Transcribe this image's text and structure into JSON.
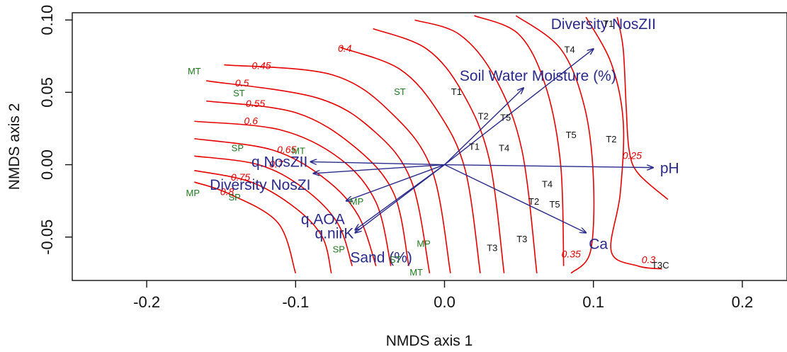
{
  "chart_data": {
    "type": "scatter",
    "xlabel": "NMDS axis 1",
    "ylabel": "NMDS axis 2",
    "xlim": [
      -0.25,
      0.23
    ],
    "ylim": [
      -0.08,
      0.105
    ],
    "x_ticks": [
      "-0.2",
      "-0.1",
      "0.0",
      "0.1",
      "0.2"
    ],
    "y_ticks": [
      "-0.05",
      "0.00",
      "0.05",
      "0.10"
    ],
    "colors": {
      "sites_green": "#1f7a1f",
      "sites_black": "#111111",
      "vectors": "#2a2a8c",
      "contours": "#e60000"
    },
    "sites": [
      {
        "label": "MT",
        "x": -0.168,
        "y": 0.064,
        "group": "green"
      },
      {
        "label": "ST",
        "x": -0.138,
        "y": 0.049,
        "group": "green"
      },
      {
        "label": "SP",
        "x": -0.139,
        "y": 0.011,
        "group": "green"
      },
      {
        "label": "MT",
        "x": -0.098,
        "y": 0.009,
        "group": "green"
      },
      {
        "label": "MP",
        "x": -0.169,
        "y": -0.02,
        "group": "green"
      },
      {
        "label": "SP",
        "x": -0.141,
        "y": -0.023,
        "group": "green"
      },
      {
        "label": "ST",
        "x": -0.03,
        "y": 0.05,
        "group": "green"
      },
      {
        "label": "MP",
        "x": -0.059,
        "y": -0.026,
        "group": "green"
      },
      {
        "label": "SP",
        "x": -0.071,
        "y": -0.059,
        "group": "green"
      },
      {
        "label": "MP",
        "x": -0.014,
        "y": -0.055,
        "group": "green"
      },
      {
        "label": "ST",
        "x": -0.033,
        "y": -0.066,
        "group": "green"
      },
      {
        "label": "MT",
        "x": -0.019,
        "y": -0.075,
        "group": "green"
      },
      {
        "label": "T1",
        "x": 0.11,
        "y": 0.097,
        "group": "black"
      },
      {
        "label": "T4",
        "x": 0.084,
        "y": 0.079,
        "group": "black"
      },
      {
        "label": "T1",
        "x": 0.008,
        "y": 0.05,
        "group": "black"
      },
      {
        "label": "T2",
        "x": 0.026,
        "y": 0.033,
        "group": "black"
      },
      {
        "label": "T5",
        "x": 0.041,
        "y": 0.032,
        "group": "black"
      },
      {
        "label": "T5",
        "x": 0.085,
        "y": 0.02,
        "group": "black"
      },
      {
        "label": "T2",
        "x": 0.112,
        "y": 0.017,
        "group": "black"
      },
      {
        "label": "T1",
        "x": 0.02,
        "y": 0.012,
        "group": "black"
      },
      {
        "label": "T4",
        "x": 0.04,
        "y": 0.011,
        "group": "black"
      },
      {
        "label": "T4",
        "x": 0.069,
        "y": -0.014,
        "group": "black"
      },
      {
        "label": "T2",
        "x": 0.06,
        "y": -0.026,
        "group": "black"
      },
      {
        "label": "T5",
        "x": 0.074,
        "y": -0.028,
        "group": "black"
      },
      {
        "label": "T3",
        "x": 0.052,
        "y": -0.052,
        "group": "black"
      },
      {
        "label": "T3",
        "x": 0.032,
        "y": -0.058,
        "group": "black"
      },
      {
        "label": "T3C",
        "x": 0.145,
        "y": -0.07,
        "group": "black"
      }
    ],
    "vectors": [
      {
        "label": "Diversity NosZII",
        "x": 0.1,
        "y": 0.08
      },
      {
        "label": "Soil Water Moisture (%)",
        "x": 0.053,
        "y": 0.053
      },
      {
        "label": "pH",
        "x": 0.14,
        "y": -0.002
      },
      {
        "label": "Ca",
        "x": 0.095,
        "y": -0.047
      },
      {
        "label": "q.NosZII",
        "x": -0.09,
        "y": 0.002
      },
      {
        "label": "Diversity NosZI",
        "x": -0.088,
        "y": -0.006
      },
      {
        "label": "q.AOA",
        "x": -0.066,
        "y": -0.025
      },
      {
        "label": "q.nirK",
        "x": -0.06,
        "y": -0.045
      },
      {
        "label": "Sand (%)",
        "x": -0.06,
        "y": -0.047
      }
    ],
    "contours": [
      {
        "label": "0.8",
        "points": [
          [
            -0.168,
            -0.012
          ],
          [
            -0.145,
            -0.02
          ],
          [
            -0.112,
            -0.04
          ],
          [
            -0.1,
            -0.075
          ]
        ],
        "label_at": [
          -0.146,
          -0.021
        ]
      },
      {
        "label": "0.75",
        "points": [
          [
            -0.168,
            -0.004
          ],
          [
            -0.13,
            -0.012
          ],
          [
            -0.1,
            -0.03
          ],
          [
            -0.082,
            -0.05
          ],
          [
            -0.076,
            -0.075
          ]
        ],
        "label_at": [
          -0.137,
          -0.011
        ]
      },
      {
        "label": "0.7",
        "points": [
          [
            -0.168,
            0.006
          ],
          [
            -0.125,
            0.0
          ],
          [
            -0.095,
            -0.016
          ],
          [
            -0.072,
            -0.04
          ],
          [
            -0.062,
            -0.07
          ]
        ],
        "label_at": [
          -0.113,
          -0.002
        ]
      },
      {
        "label": "0.65",
        "points": [
          [
            -0.168,
            0.018
          ],
          [
            -0.115,
            0.01
          ],
          [
            -0.08,
            -0.01
          ],
          [
            -0.058,
            -0.035
          ],
          [
            -0.046,
            -0.07
          ]
        ],
        "label_at": [
          -0.106,
          0.008
        ]
      },
      {
        "label": "0.6",
        "points": [
          [
            -0.168,
            0.03
          ],
          [
            -0.11,
            0.024
          ],
          [
            -0.07,
            0.004
          ],
          [
            -0.046,
            -0.026
          ],
          [
            -0.036,
            -0.07
          ]
        ],
        "label_at": [
          -0.13,
          0.028
        ]
      },
      {
        "label": "0.55",
        "points": [
          [
            -0.16,
            0.044
          ],
          [
            -0.1,
            0.036
          ],
          [
            -0.06,
            0.012
          ],
          [
            -0.034,
            -0.02
          ],
          [
            -0.024,
            -0.07
          ]
        ],
        "label_at": [
          -0.127,
          0.04
        ]
      },
      {
        "label": "0.5",
        "points": [
          [
            -0.16,
            0.058
          ],
          [
            -0.085,
            0.046
          ],
          [
            -0.046,
            0.022
          ],
          [
            -0.022,
            -0.012
          ],
          [
            -0.01,
            -0.075
          ]
        ],
        "label_at": [
          -0.136,
          0.054
        ]
      },
      {
        "label": "0.45",
        "points": [
          [
            -0.148,
            0.069
          ],
          [
            -0.075,
            0.062
          ],
          [
            -0.034,
            0.034
          ],
          [
            -0.008,
            -0.005
          ],
          [
            0.004,
            -0.075
          ]
        ],
        "label_at": [
          -0.123,
          0.066
        ]
      },
      {
        "label": "0.4",
        "points": [
          [
            -0.07,
            0.081
          ],
          [
            -0.03,
            0.066
          ],
          [
            -0.004,
            0.036
          ],
          [
            0.014,
            -0.004
          ],
          [
            0.024,
            -0.075
          ]
        ],
        "label_at": [
          -0.067,
          0.078
        ]
      },
      {
        "label": "",
        "points": [
          [
            -0.048,
            0.094
          ],
          [
            -0.012,
            0.08
          ],
          [
            0.012,
            0.05
          ],
          [
            0.03,
            0.004
          ],
          [
            0.04,
            -0.075
          ]
        ],
        "label_at": null
      },
      {
        "label": "",
        "points": [
          [
            -0.02,
            0.1
          ],
          [
            0.01,
            0.09
          ],
          [
            0.034,
            0.06
          ],
          [
            0.052,
            0.01
          ],
          [
            0.062,
            -0.075
          ]
        ],
        "label_at": null
      },
      {
        "label": "",
        "points": [
          [
            0.02,
            0.103
          ],
          [
            0.05,
            0.09
          ],
          [
            0.068,
            0.054
          ],
          [
            0.078,
            0.0
          ],
          [
            0.08,
            -0.07
          ]
        ],
        "label_at": null
      },
      {
        "label": "0.35",
        "points": [
          [
            0.048,
            0.103
          ],
          [
            0.078,
            0.08
          ],
          [
            0.094,
            0.04
          ],
          [
            0.1,
            -0.01
          ],
          [
            0.098,
            -0.06
          ],
          [
            0.085,
            -0.075
          ]
        ],
        "label_at": [
          0.085,
          -0.064
        ]
      },
      {
        "label": "0.3",
        "points": [
          [
            0.095,
            0.102
          ],
          [
            0.112,
            0.07
          ],
          [
            0.12,
            0.03
          ],
          [
            0.118,
            -0.02
          ],
          [
            0.112,
            -0.06
          ],
          [
            0.13,
            -0.07
          ],
          [
            0.146,
            -0.072
          ]
        ],
        "label_at": [
          0.137,
          -0.068
        ]
      },
      {
        "label": "0.25",
        "points": [
          [
            0.116,
            0.102
          ],
          [
            0.12,
            0.08
          ],
          [
            0.122,
            0.04
          ],
          [
            0.124,
            0.01
          ],
          [
            0.13,
            -0.006
          ],
          [
            0.15,
            -0.024
          ]
        ],
        "label_at": [
          0.126,
          0.004
        ]
      },
      {
        "label": "0.4",
        "points": [
          [
            -0.07,
            0.081
          ],
          [
            -0.068,
            0.081
          ]
        ],
        "label_at": null
      }
    ]
  }
}
